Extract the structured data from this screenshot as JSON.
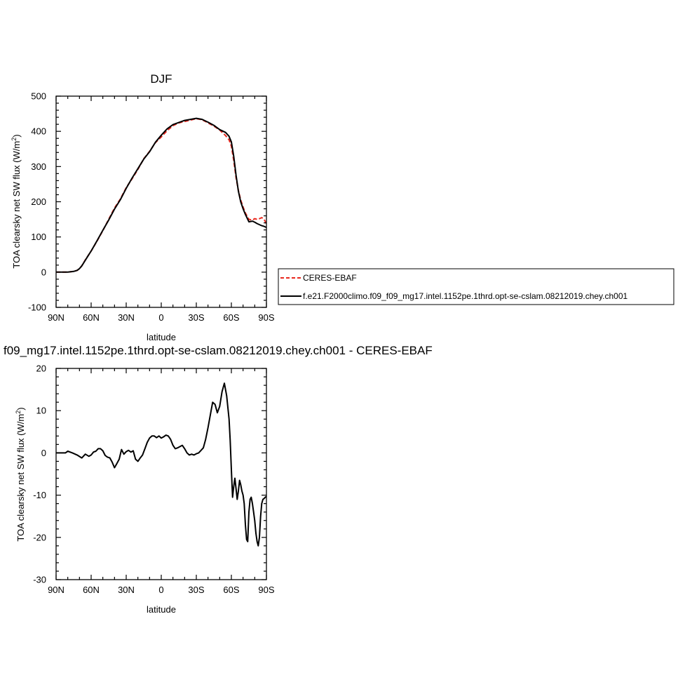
{
  "chart_data": [
    {
      "type": "line",
      "title": "DJF",
      "xlabel": "latitude",
      "ylabel": "TOA clearsky net SW flux (W/m",
      "ylabel_sup": "2",
      "ylabel_end": ")",
      "xlim": [
        90,
        -90
      ],
      "ylim": [
        -100,
        500
      ],
      "x_ticks": [
        {
          "v": 90,
          "label": "90N"
        },
        {
          "v": 60,
          "label": "60N"
        },
        {
          "v": 30,
          "label": "30N"
        },
        {
          "v": 0,
          "label": "0"
        },
        {
          "v": -30,
          "label": "30S"
        },
        {
          "v": -60,
          "label": "60S"
        },
        {
          "v": -90,
          "label": "90S"
        }
      ],
      "y_ticks": [
        {
          "v": 500,
          "label": "500"
        },
        {
          "v": 400,
          "label": "400"
        },
        {
          "v": 300,
          "label": "300"
        },
        {
          "v": 200,
          "label": "200"
        },
        {
          "v": 100,
          "label": "100"
        },
        {
          "v": 0,
          "label": "0"
        },
        {
          "v": -100,
          "label": "-100"
        }
      ],
      "grid": false,
      "legend_position": "right",
      "series": [
        {
          "name": "CERES-EBAF",
          "color": "#e8281e",
          "dash": "dashed",
          "x": [
            90,
            85,
            80,
            75,
            72,
            70,
            68,
            65,
            62,
            60,
            55,
            50,
            45,
            40,
            35,
            30,
            25,
            20,
            15,
            10,
            5,
            0,
            -5,
            -10,
            -15,
            -20,
            -25,
            -30,
            -35,
            -40,
            -45,
            -50,
            -55,
            -58,
            -60,
            -62,
            -64,
            -66,
            -68,
            -70,
            -72,
            -75,
            -78,
            -80,
            -82,
            -84,
            -86,
            -88,
            -90
          ],
          "y": [
            0,
            0,
            0,
            2,
            5,
            10,
            18,
            35,
            50,
            60,
            88,
            118,
            150,
            182,
            208,
            240,
            265,
            292,
            322,
            343,
            368,
            384,
            402,
            416,
            424,
            428,
            432,
            436,
            433,
            424,
            415,
            404,
            388,
            376,
            358,
            318,
            268,
            232,
            205,
            185,
            168,
            150,
            148,
            152,
            150,
            152,
            155,
            150,
            137
          ]
        },
        {
          "name": "f.e21.F2000climo.f09_f09_mg17.intel.1152pe.1thrd.opt-se-cslam.08212019.chey.ch001",
          "color": "#000000",
          "dash": "solid",
          "x": [
            90,
            85,
            80,
            75,
            72,
            70,
            68,
            65,
            62,
            60,
            55,
            50,
            45,
            40,
            35,
            30,
            25,
            20,
            15,
            10,
            5,
            0,
            -5,
            -10,
            -15,
            -20,
            -25,
            -30,
            -35,
            -40,
            -45,
            -50,
            -55,
            -58,
            -60,
            -62,
            -64,
            -66,
            -68,
            -70,
            -72,
            -75,
            -78,
            -80,
            -82,
            -84,
            -86,
            -88,
            -90
          ],
          "y": [
            0,
            0,
            0,
            2,
            5,
            10,
            18,
            34,
            50,
            60,
            89,
            119,
            148,
            179,
            206,
            238,
            267,
            294,
            321,
            342,
            369,
            389,
            407,
            419,
            425,
            431,
            434,
            437,
            434,
            426,
            417,
            405,
            397,
            386,
            370,
            330,
            275,
            230,
            200,
            180,
            164,
            143,
            145,
            142,
            138,
            135,
            132,
            130,
            127
          ]
        }
      ]
    },
    {
      "type": "line",
      "title": "f09_mg17.intel.1152pe.1thrd.opt-se-cslam.08212019.chey.ch001 - CERES-EBAF",
      "xlabel": "latitude",
      "ylabel": "TOA clearsky net SW flux (W/m",
      "ylabel_sup": "2",
      "ylabel_end": ")",
      "xlim": [
        90,
        -90
      ],
      "ylim": [
        -30,
        20
      ],
      "x_ticks": [
        {
          "v": 90,
          "label": "90N"
        },
        {
          "v": 60,
          "label": "60N"
        },
        {
          "v": 30,
          "label": "30N"
        },
        {
          "v": 0,
          "label": "0"
        },
        {
          "v": -30,
          "label": "30S"
        },
        {
          "v": -60,
          "label": "60S"
        },
        {
          "v": -90,
          "label": "90S"
        }
      ],
      "y_ticks": [
        {
          "v": 20,
          "label": "20"
        },
        {
          "v": 10,
          "label": "10"
        },
        {
          "v": 0,
          "label": "0"
        },
        {
          "v": -10,
          "label": "-10"
        },
        {
          "v": -20,
          "label": "-20"
        },
        {
          "v": -30,
          "label": "-30"
        }
      ],
      "grid": false,
      "series": [
        {
          "name": "",
          "color": "#000000",
          "dash": "solid",
          "x": [
            90,
            82,
            80,
            76,
            72,
            68,
            65,
            62,
            60,
            58,
            56,
            54,
            52,
            50,
            48,
            46,
            44,
            42,
            40,
            38,
            36,
            34,
            32,
            30,
            28,
            26,
            24,
            22,
            20,
            18,
            16,
            14,
            12,
            10,
            8,
            6,
            4,
            2,
            0,
            -2,
            -4,
            -6,
            -8,
            -10,
            -12,
            -14,
            -16,
            -18,
            -20,
            -22,
            -24,
            -26,
            -28,
            -30,
            -32,
            -34,
            -36,
            -38,
            -40,
            -42,
            -44,
            -46,
            -48,
            -50,
            -52,
            -54,
            -56,
            -58,
            -59,
            -60,
            -61,
            -62,
            -63,
            -64,
            -65,
            -66,
            -67,
            -68,
            -69,
            -70,
            -71,
            -72,
            -73,
            -74,
            -75,
            -76,
            -77,
            -78,
            -79,
            -80,
            -81,
            -82,
            -83,
            -84,
            -85,
            -86,
            -87,
            -88,
            -89,
            -90
          ],
          "y": [
            0,
            0,
            0.4,
            0,
            -0.5,
            -1.2,
            -0.3,
            -0.8,
            -0.5,
            0.2,
            0.4,
            1.0,
            1.0,
            0.5,
            -0.6,
            -1.0,
            -1.2,
            -2.2,
            -3.5,
            -2.5,
            -1.5,
            0.8,
            -0.3,
            0.3,
            0.6,
            0.2,
            0.5,
            -1.5,
            -2.0,
            -1.2,
            -0.5,
            1.0,
            2.5,
            3.5,
            4.0,
            4.0,
            3.6,
            4.0,
            3.5,
            3.8,
            4.2,
            4.0,
            3.2,
            1.8,
            1.0,
            1.2,
            1.5,
            1.8,
            1.0,
            0,
            -0.5,
            -0.3,
            -0.5,
            -0.2,
            0,
            0.6,
            1.2,
            3.2,
            6.0,
            9.0,
            12.0,
            11.5,
            9.5,
            11.0,
            14.5,
            16.5,
            13.5,
            8.0,
            3.0,
            -4.0,
            -10.5,
            -8.0,
            -6.0,
            -8.5,
            -11.0,
            -9.0,
            -6.5,
            -7.5,
            -9.0,
            -10.0,
            -12.0,
            -17.0,
            -20.5,
            -21.0,
            -14.0,
            -11.0,
            -10.5,
            -12.0,
            -14.0,
            -16.0,
            -19.0,
            -21.0,
            -22.0,
            -20.0,
            -15.0,
            -12.0,
            -11.0,
            -10.8,
            -10.5,
            -10.3
          ]
        }
      ]
    }
  ]
}
